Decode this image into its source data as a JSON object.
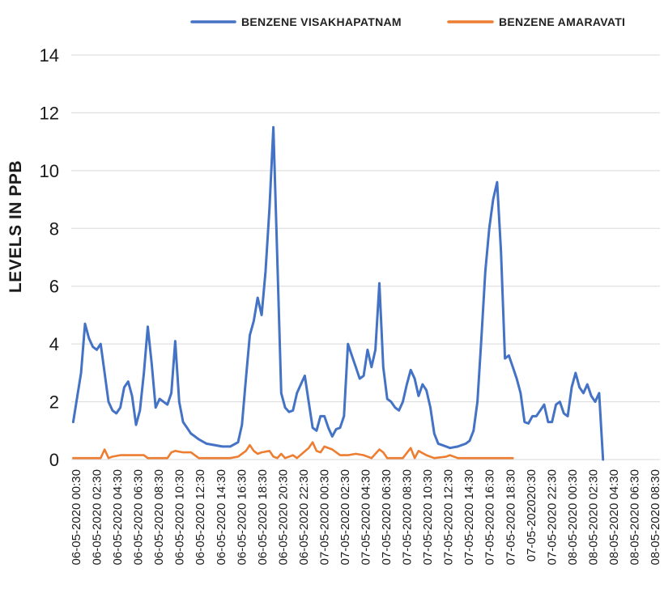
{
  "chart_data": {
    "type": "line",
    "title": "",
    "xlabel": "",
    "ylabel": "LEVELS IN PPB",
    "ylim": [
      0,
      14
    ],
    "yticks": [
      0,
      2,
      4,
      6,
      8,
      10,
      12,
      14
    ],
    "grid": true,
    "legend_position": "top-right",
    "n_points": 150,
    "x_tick_labels": [
      "06-05-2020 00:30",
      "06-05-2020 02:30",
      "06-05-2020 04:30",
      "06-05-2020 06:30",
      "06-05-2020 08:30",
      "06-05-2020 10:30",
      "06-05-2020 12:30",
      "06-05-2020 14:30",
      "06-05-2020 16:30",
      "06-05-2020 18:30",
      "06-05-2020 20:30",
      "06-05-2020 22:30",
      "07-05-2020 00:30",
      "07-05-2020 02:30",
      "07-05-2020 04:30",
      "07-05-2020 06:30",
      "07-05-2020 08:30",
      "07-05-2020 10:30",
      "07-05-2020 12:30",
      "07-05-2020 14:30",
      "07-05-2020 16:30",
      "07-05-2020 18:30",
      "07-05-202020:30",
      "07-05-2020 22:30",
      "08-05-2020 00:30",
      "08-05-2020 02:30",
      "08-05-2020 04:30",
      "08-05-2020 06:30",
      "08-05-2020 08:30"
    ],
    "series": [
      {
        "name": "BENZENE VISAKHAPATNAM",
        "color": "#4472c4",
        "points": [
          [
            0,
            1.3
          ],
          [
            2,
            3.0
          ],
          [
            3,
            4.7
          ],
          [
            4,
            4.2
          ],
          [
            5,
            3.9
          ],
          [
            6,
            3.8
          ],
          [
            7,
            4.0
          ],
          [
            8,
            3.0
          ],
          [
            9,
            2.0
          ],
          [
            10,
            1.7
          ],
          [
            11,
            1.6
          ],
          [
            12,
            1.8
          ],
          [
            13,
            2.5
          ],
          [
            14,
            2.7
          ],
          [
            15,
            2.2
          ],
          [
            16,
            1.2
          ],
          [
            17,
            1.7
          ],
          [
            18,
            3.0
          ],
          [
            19,
            4.6
          ],
          [
            20,
            3.3
          ],
          [
            21,
            1.8
          ],
          [
            22,
            2.1
          ],
          [
            23,
            2.0
          ],
          [
            24,
            1.9
          ],
          [
            25,
            2.3
          ],
          [
            26,
            4.1
          ],
          [
            27,
            2.0
          ],
          [
            28,
            1.3
          ],
          [
            29,
            1.1
          ],
          [
            30,
            0.9
          ],
          [
            31,
            0.8
          ],
          [
            32,
            0.7
          ],
          [
            34,
            0.55
          ],
          [
            36,
            0.5
          ],
          [
            38,
            0.45
          ],
          [
            40,
            0.45
          ],
          [
            42,
            0.6
          ],
          [
            43,
            1.2
          ],
          [
            44,
            2.8
          ],
          [
            45,
            4.3
          ],
          [
            46,
            4.8
          ],
          [
            47,
            5.6
          ],
          [
            48,
            5.0
          ],
          [
            49,
            6.5
          ],
          [
            50,
            8.7
          ],
          [
            51,
            11.5
          ],
          [
            52,
            7.0
          ],
          [
            53,
            2.3
          ],
          [
            54,
            1.8
          ],
          [
            55,
            1.65
          ],
          [
            56,
            1.7
          ],
          [
            57,
            2.3
          ],
          [
            58,
            2.6
          ],
          [
            59,
            2.9
          ],
          [
            60,
            2.0
          ],
          [
            61,
            1.1
          ],
          [
            62,
            1.0
          ],
          [
            63,
            1.5
          ],
          [
            64,
            1.5
          ],
          [
            65,
            1.1
          ],
          [
            66,
            0.8
          ],
          [
            67,
            1.05
          ],
          [
            68,
            1.1
          ],
          [
            69,
            1.5
          ],
          [
            70,
            4.0
          ],
          [
            71,
            3.6
          ],
          [
            72,
            3.2
          ],
          [
            73,
            2.8
          ],
          [
            74,
            2.9
          ],
          [
            75,
            3.8
          ],
          [
            76,
            3.2
          ],
          [
            77,
            3.8
          ],
          [
            78,
            6.1
          ],
          [
            79,
            3.2
          ],
          [
            80,
            2.1
          ],
          [
            81,
            2.0
          ],
          [
            82,
            1.8
          ],
          [
            83,
            1.7
          ],
          [
            84,
            2.0
          ],
          [
            85,
            2.6
          ],
          [
            86,
            3.1
          ],
          [
            87,
            2.8
          ],
          [
            88,
            2.2
          ],
          [
            89,
            2.6
          ],
          [
            90,
            2.4
          ],
          [
            91,
            1.8
          ],
          [
            92,
            0.9
          ],
          [
            93,
            0.55
          ],
          [
            94,
            0.5
          ],
          [
            95,
            0.45
          ],
          [
            96,
            0.4
          ],
          [
            98,
            0.45
          ],
          [
            100,
            0.55
          ],
          [
            101,
            0.65
          ],
          [
            102,
            1.0
          ],
          [
            103,
            2.0
          ],
          [
            104,
            4.2
          ],
          [
            105,
            6.5
          ],
          [
            106,
            8.0
          ],
          [
            107,
            9.0
          ],
          [
            108,
            9.6
          ],
          [
            109,
            7.2
          ],
          [
            110,
            3.5
          ],
          [
            111,
            3.6
          ],
          [
            112,
            3.2
          ],
          [
            113,
            2.8
          ],
          [
            114,
            2.3
          ],
          [
            115,
            1.3
          ],
          [
            116,
            1.25
          ],
          [
            117,
            1.5
          ],
          [
            118,
            1.5
          ],
          [
            119,
            1.7
          ],
          [
            120,
            1.9
          ],
          [
            121,
            1.3
          ],
          [
            122,
            1.3
          ],
          [
            123,
            1.9
          ],
          [
            124,
            2.0
          ],
          [
            125,
            1.6
          ],
          [
            126,
            1.5
          ],
          [
            127,
            2.5
          ],
          [
            128,
            3.0
          ],
          [
            129,
            2.5
          ],
          [
            130,
            2.3
          ],
          [
            131,
            2.6
          ],
          [
            132,
            2.2
          ],
          [
            133,
            2.0
          ],
          [
            134,
            2.3
          ],
          [
            135,
            0.0
          ]
        ]
      },
      {
        "name": "BENZENE AMARAVATI",
        "color": "#ed7d31",
        "points": [
          [
            0,
            0.05
          ],
          [
            4,
            0.05
          ],
          [
            7,
            0.05
          ],
          [
            8,
            0.35
          ],
          [
            9,
            0.05
          ],
          [
            10,
            0.1
          ],
          [
            12,
            0.15
          ],
          [
            18,
            0.15
          ],
          [
            19,
            0.05
          ],
          [
            24,
            0.05
          ],
          [
            25,
            0.25
          ],
          [
            26,
            0.3
          ],
          [
            28,
            0.25
          ],
          [
            30,
            0.25
          ],
          [
            32,
            0.05
          ],
          [
            36,
            0.05
          ],
          [
            40,
            0.05
          ],
          [
            42,
            0.1
          ],
          [
            44,
            0.3
          ],
          [
            45,
            0.5
          ],
          [
            46,
            0.3
          ],
          [
            47,
            0.2
          ],
          [
            48,
            0.25
          ],
          [
            50,
            0.3
          ],
          [
            51,
            0.1
          ],
          [
            52,
            0.05
          ],
          [
            53,
            0.2
          ],
          [
            54,
            0.05
          ],
          [
            56,
            0.15
          ],
          [
            57,
            0.05
          ],
          [
            60,
            0.4
          ],
          [
            61,
            0.6
          ],
          [
            62,
            0.3
          ],
          [
            63,
            0.25
          ],
          [
            64,
            0.45
          ],
          [
            66,
            0.35
          ],
          [
            68,
            0.15
          ],
          [
            70,
            0.15
          ],
          [
            72,
            0.2
          ],
          [
            74,
            0.15
          ],
          [
            76,
            0.05
          ],
          [
            78,
            0.35
          ],
          [
            79,
            0.25
          ],
          [
            80,
            0.05
          ],
          [
            84,
            0.05
          ],
          [
            86,
            0.4
          ],
          [
            87,
            0.05
          ],
          [
            88,
            0.3
          ],
          [
            90,
            0.15
          ],
          [
            92,
            0.05
          ],
          [
            95,
            0.1
          ],
          [
            96,
            0.15
          ],
          [
            98,
            0.05
          ],
          [
            110,
            0.05
          ],
          [
            112,
            0.05
          ]
        ]
      }
    ]
  }
}
